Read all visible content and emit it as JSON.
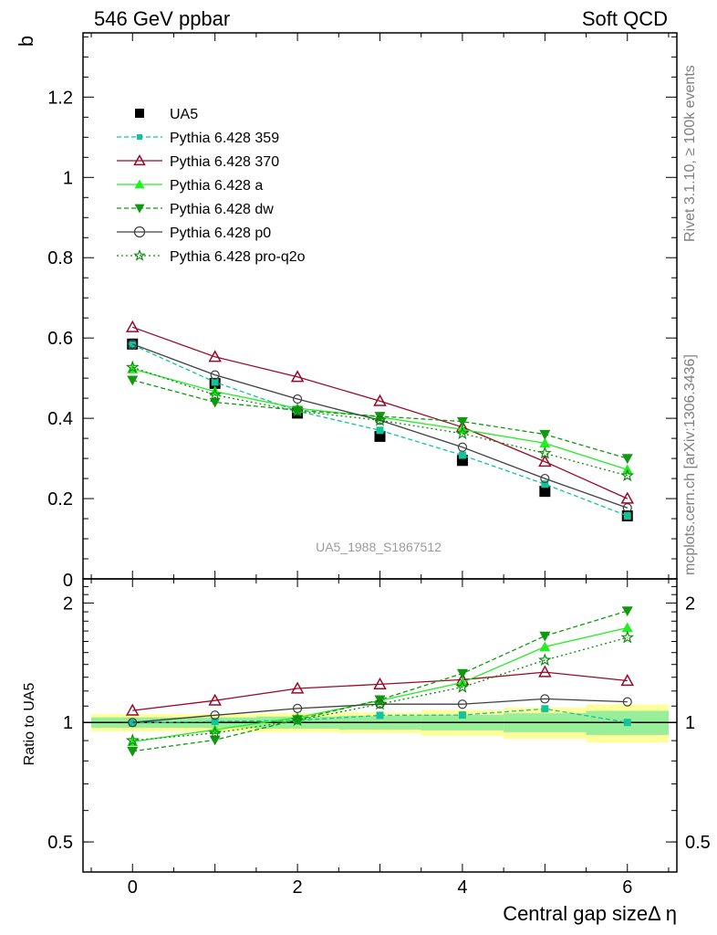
{
  "header": {
    "left_title": "546 GeV ppbar",
    "right_title": "Soft QCD"
  },
  "side_labels": {
    "rivet": "Rivet 3.1.10, ≥ 100k events",
    "mcplots": "mcplots.cern.ch [arXiv:1306.3436]"
  },
  "chart_data": {
    "type": "line",
    "title": "",
    "ylabel": "b",
    "xlabel": "Central gap sizeΔ η",
    "ratio_ylabel": "Ratio to UA5",
    "watermark": "UA5_1988_S1867512",
    "x": [
      0,
      1,
      2,
      3,
      4,
      5,
      6
    ],
    "xlim": [
      -0.6,
      6.6
    ],
    "ylim": [
      0,
      1.36
    ],
    "ratio_ylim": [
      0.42,
      2.3
    ],
    "x_ticks": [
      0,
      2,
      4,
      6
    ],
    "y_ticks": [
      0.2,
      0.4,
      0.6,
      0.8,
      1,
      1.2
    ],
    "y_bottom_label": "0",
    "ratio_ticks": [
      0.5,
      1,
      2
    ],
    "reference": {
      "name": "UA5",
      "color": "#000000",
      "marker": "square",
      "values": [
        0.585,
        0.487,
        0.413,
        0.355,
        0.295,
        0.218,
        0.157
      ]
    },
    "ratio_band": {
      "inner": [
        0.03,
        0.03,
        0.035,
        0.04,
        0.045,
        0.055,
        0.07
      ],
      "outer": [
        0.05,
        0.05,
        0.055,
        0.06,
        0.075,
        0.09,
        0.11
      ],
      "inner_color": "#99ee99",
      "outer_color": "#ffff99"
    },
    "series": [
      {
        "name": "Pythia 6.428 359",
        "color": "#12c49a",
        "dash": "5,3",
        "marker": "small-square",
        "values": [
          0.583,
          0.49,
          0.418,
          0.37,
          0.308,
          0.236,
          0.157
        ]
      },
      {
        "name": "Pythia 6.428 370",
        "color": "#990a28",
        "dash": "",
        "marker": "open-triangle",
        "values": [
          0.627,
          0.553,
          0.503,
          0.443,
          0.378,
          0.292,
          0.2
        ]
      },
      {
        "name": "Pythia 6.428 a",
        "color": "#22ee22",
        "dash": "",
        "marker": "filled-triangle",
        "values": [
          0.523,
          0.467,
          0.425,
          0.403,
          0.372,
          0.338,
          0.272
        ]
      },
      {
        "name": "Pythia 6.428 dw",
        "color": "#109910",
        "dash": "5,3",
        "marker": "filled-triangle-down",
        "values": [
          0.495,
          0.44,
          0.42,
          0.405,
          0.392,
          0.36,
          0.3
        ]
      },
      {
        "name": "Pythia 6.428 p0",
        "color": "#404040",
        "dash": "",
        "marker": "open-circle",
        "values": [
          0.585,
          0.508,
          0.448,
          0.395,
          0.328,
          0.25,
          0.177
        ]
      },
      {
        "name": "Pythia 6.428 pro-q2o",
        "color": "#108a10",
        "dash": "2,3",
        "marker": "open-star",
        "values": [
          0.527,
          0.458,
          0.418,
          0.395,
          0.362,
          0.313,
          0.257
        ]
      }
    ]
  }
}
